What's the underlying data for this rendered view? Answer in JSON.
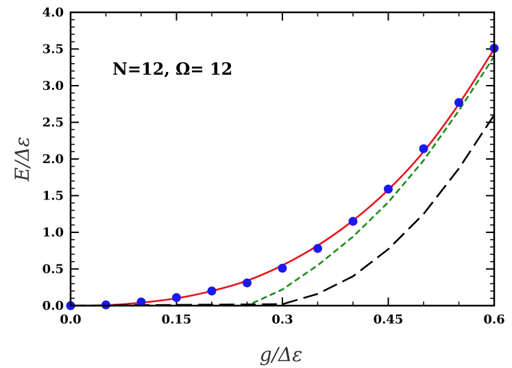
{
  "chart_data": {
    "type": "line",
    "title": "",
    "annotation": "N=12, Ω= 12",
    "xlabel": "g/Δε",
    "ylabel": "E/Δε",
    "xlim": [
      0.0,
      0.6
    ],
    "ylim": [
      0.0,
      4.0
    ],
    "xticks": [
      0.0,
      0.15,
      0.3,
      0.45,
      0.6
    ],
    "xtick_labels": [
      "0.0",
      "0.15",
      "0.3",
      "0.45",
      "0.6"
    ],
    "yticks": [
      0.0,
      0.5,
      1.0,
      1.5,
      2.0,
      2.5,
      3.0,
      3.5,
      4.0
    ],
    "ytick_labels": [
      "0.0",
      "0.5",
      "1.0",
      "1.5",
      "2.0",
      "2.5",
      "3.0",
      "3.5",
      "4.0"
    ],
    "grid": false,
    "legend": "none",
    "series": [
      {
        "style": "solid",
        "color": "#e8141c",
        "x": [
          0.0,
          0.05,
          0.1,
          0.15,
          0.2,
          0.25,
          0.3,
          0.35,
          0.4,
          0.45,
          0.5,
          0.55,
          0.6
        ],
        "y": [
          0.0,
          0.005,
          0.04,
          0.1,
          0.2,
          0.34,
          0.55,
          0.82,
          1.16,
          1.58,
          2.1,
          2.75,
          3.5
        ]
      },
      {
        "style": "short-dash",
        "color": "#1a8c1a",
        "x": [
          0.0,
          0.25,
          0.3,
          0.35,
          0.4,
          0.45,
          0.5,
          0.55,
          0.6
        ],
        "y": [
          0.0,
          0.0,
          0.22,
          0.55,
          0.94,
          1.41,
          1.98,
          2.66,
          3.4
        ]
      },
      {
        "style": "long-dash",
        "color": "#000000",
        "x": [
          0.0,
          0.3,
          0.35,
          0.4,
          0.45,
          0.5,
          0.55,
          0.6
        ],
        "y": [
          0.0,
          0.02,
          0.16,
          0.4,
          0.77,
          1.25,
          1.87,
          2.6
        ]
      },
      {
        "style": "markers",
        "color": "#1a1aee",
        "x": [
          0.0,
          0.05,
          0.1,
          0.15,
          0.2,
          0.25,
          0.3,
          0.35,
          0.4,
          0.45,
          0.5,
          0.55,
          0.6
        ],
        "y": [
          0.0,
          0.01,
          0.05,
          0.11,
          0.2,
          0.31,
          0.51,
          0.78,
          1.15,
          1.59,
          2.14,
          2.77,
          3.51
        ]
      }
    ]
  }
}
